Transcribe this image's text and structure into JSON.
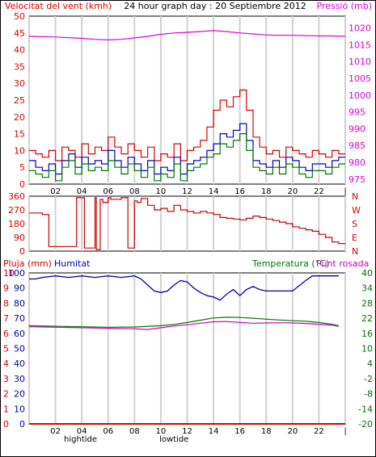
{
  "header": {
    "left_title": "Velocitat del vent (kmh)",
    "center_title": "24 hour graph day : 20 Septiembre 2012",
    "right_title": "Pressió (mb)"
  },
  "colors": {
    "wind": "#dd0000",
    "gust": "#dd0000",
    "avg": "#0000cc",
    "pressure": "#dd00dd",
    "humidity": "#0000aa",
    "temperature": "#007700",
    "dewpoint": "#cc00cc",
    "rain": "#dd0000",
    "dir": "#cc0000",
    "grid": "#d0d0d0"
  },
  "chart_data": [
    {
      "type": "line",
      "name": "wind_pressure",
      "x_ticks": [
        "02",
        "04",
        "06",
        "08",
        "10",
        "12",
        "14",
        "16",
        "18",
        "20",
        "22"
      ],
      "tide_labels": [
        {
          "text": "hightide",
          "x": 3.9
        },
        {
          "text": "lowtide",
          "x": 11.0
        }
      ],
      "y_left": {
        "label": "Velocitat del vent (kmh)",
        "range": [
          0,
          50
        ],
        "ticks": [
          0,
          5,
          10,
          15,
          20,
          25,
          30,
          35,
          40,
          45,
          50
        ]
      },
      "y_right": {
        "label": "Pressió (mb)",
        "range": [
          973.5,
          1023.5
        ],
        "ticks": [
          975,
          980,
          985,
          990,
          995,
          1000,
          1005,
          1010,
          1015,
          1020
        ]
      },
      "series": [
        {
          "key": "gust",
          "x": [
            0,
            0.5,
            1,
            1.5,
            2,
            2.5,
            3,
            3.5,
            4,
            4.5,
            5,
            5.5,
            6,
            6.5,
            7,
            7.5,
            8,
            8.5,
            9,
            9.5,
            10,
            10.5,
            11,
            11.5,
            12,
            12.5,
            13,
            13.5,
            14,
            14.5,
            15,
            15.5,
            16,
            16.5,
            17,
            17.5,
            18,
            18.5,
            19,
            19.5,
            20,
            20.5,
            21,
            21.5,
            22,
            22.5,
            23,
            23.5
          ],
          "values": [
            10,
            9,
            8,
            10,
            7,
            11,
            10,
            8,
            12,
            9,
            11,
            10,
            14,
            11,
            9,
            12,
            10,
            8,
            11,
            7,
            9,
            8,
            12,
            7,
            10,
            11,
            13,
            17,
            22,
            25,
            23,
            26,
            28,
            22,
            14,
            11,
            9,
            10,
            8,
            11,
            10,
            9,
            8,
            10,
            9,
            8,
            10,
            9
          ]
        },
        {
          "key": "avg",
          "x": [
            0,
            0.5,
            1,
            1.5,
            2,
            2.5,
            3,
            3.5,
            4,
            4.5,
            5,
            5.5,
            6,
            6.5,
            7,
            7.5,
            8,
            8.5,
            9,
            9.5,
            10,
            10.5,
            11,
            11.5,
            12,
            12.5,
            13,
            13.5,
            14,
            14.5,
            15,
            15.5,
            16,
            16.5,
            17,
            17.5,
            18,
            18.5,
            19,
            19.5,
            20,
            20.5,
            21,
            21.5,
            22,
            22.5,
            23,
            23.5
          ],
          "values": [
            7,
            5,
            4,
            6,
            3,
            7,
            9,
            5,
            8,
            6,
            7,
            6,
            10,
            7,
            5,
            8,
            6,
            4,
            7,
            3,
            5,
            4,
            8,
            3,
            6,
            7,
            8,
            10,
            12,
            15,
            14,
            16,
            18,
            13,
            7,
            6,
            5,
            7,
            5,
            8,
            7,
            5,
            4,
            6,
            6,
            5,
            7,
            8
          ]
        },
        {
          "key": "wind",
          "x": [
            0,
            0.5,
            1,
            1.5,
            2,
            2.5,
            3,
            3.5,
            4,
            4.5,
            5,
            5.5,
            6,
            6.5,
            7,
            7.5,
            8,
            8.5,
            9,
            9.5,
            10,
            10.5,
            11,
            11.5,
            12,
            12.5,
            13,
            13.5,
            14,
            14.5,
            15,
            15.5,
            16,
            16.5,
            17,
            17.5,
            18,
            18.5,
            19,
            19.5,
            20,
            20.5,
            21,
            21.5,
            22,
            22.5,
            23,
            23.5
          ],
          "values": [
            4,
            3,
            2,
            4,
            1,
            5,
            7,
            3,
            6,
            4,
            5,
            4,
            7,
            5,
            3,
            6,
            4,
            2,
            5,
            1,
            3,
            2,
            6,
            1,
            4,
            5,
            6,
            8,
            9,
            12,
            11,
            13,
            15,
            10,
            5,
            4,
            3,
            5,
            3,
            6,
            5,
            3,
            2,
            4,
            4,
            3,
            5,
            6
          ]
        },
        {
          "key": "pressure",
          "x": [
            0,
            2,
            4,
            5,
            6,
            7,
            8,
            9,
            10,
            11,
            12,
            13,
            14,
            15,
            16,
            17,
            18,
            19,
            20,
            21,
            22,
            23,
            24
          ],
          "values": [
            1017.5,
            1017.3,
            1016.9,
            1016.6,
            1016.4,
            1016.6,
            1017.0,
            1017.5,
            1018.1,
            1018.5,
            1018.7,
            1018.9,
            1019.2,
            1018.9,
            1018.5,
            1018.2,
            1017.9,
            1017.8,
            1017.8,
            1017.7,
            1017.6,
            1017.6,
            1017.5
          ]
        }
      ]
    },
    {
      "type": "line",
      "name": "wind_direction",
      "y_left": {
        "range": [
          0,
          360
        ],
        "ticks": [
          0,
          90,
          180,
          270,
          360
        ]
      },
      "y_right_labels": [
        "N",
        "W",
        "S",
        "E",
        "N"
      ],
      "series": [
        {
          "key": "dir",
          "x": [
            0,
            0.3,
            0.6,
            1,
            1.5,
            2,
            3,
            3.5,
            3.6,
            4.1,
            4.2,
            5,
            5.1,
            5.4,
            5.6,
            6,
            6.2,
            7,
            7.5,
            8,
            8.2,
            8.5,
            9,
            9.5,
            10,
            10.5,
            11,
            11.5,
            12,
            12.5,
            13,
            13.5,
            14,
            14.5,
            15,
            15.5,
            16,
            16.5,
            17,
            17.5,
            18,
            18.5,
            19,
            19.5,
            20,
            20.5,
            21,
            21.5,
            22,
            22.5,
            23,
            23.5
          ],
          "values": [
            250,
            250,
            250,
            240,
            30,
            30,
            30,
            30,
            350,
            350,
            20,
            350,
            10,
            340,
            320,
            350,
            340,
            350,
            20,
            330,
            320,
            345,
            300,
            270,
            280,
            260,
            300,
            270,
            260,
            250,
            260,
            250,
            240,
            220,
            215,
            210,
            205,
            215,
            230,
            220,
            210,
            200,
            190,
            180,
            160,
            150,
            140,
            130,
            110,
            90,
            60,
            50
          ]
        }
      ]
    },
    {
      "type": "line",
      "name": "rain_hum_temp",
      "left_header": [
        "Pluja (mm)",
        "Humitat"
      ],
      "right_header": [
        "Temperatura (°C)",
        "Punt rosada"
      ],
      "y_left_rain": {
        "range": [
          0,
          10
        ],
        "ticks": [
          0,
          1,
          2,
          3,
          4,
          5,
          6,
          7,
          8,
          9,
          10
        ]
      },
      "y_left_hum": {
        "range": [
          0,
          100
        ],
        "ticks": [
          0,
          10,
          20,
          30,
          40,
          50,
          60,
          70,
          80,
          90,
          100
        ]
      },
      "y_right": {
        "range": [
          -20,
          40
        ],
        "ticks": [
          -20,
          -14,
          -8,
          -2,
          4,
          10,
          16,
          22,
          28,
          34,
          40
        ]
      },
      "series": [
        {
          "key": "humidity",
          "x": [
            0,
            0.5,
            1,
            2,
            3,
            4,
            5,
            6,
            7,
            8,
            8.5,
            9,
            9.5,
            10,
            10.5,
            11,
            11.5,
            12,
            12.5,
            13,
            13.5,
            14,
            14.5,
            15,
            15.5,
            16,
            16.5,
            17,
            17.5,
            18,
            19,
            20,
            21,
            21.5,
            22,
            23,
            23.5
          ],
          "values": [
            96,
            96,
            97,
            98,
            97,
            98,
            97,
            98,
            97,
            98,
            96,
            92,
            88,
            87,
            88,
            92,
            95,
            94,
            90,
            87,
            85,
            84,
            82,
            86,
            89,
            85,
            89,
            91,
            89,
            88,
            88,
            88,
            95,
            98,
            98,
            98,
            98
          ]
        },
        {
          "key": "temperature",
          "x": [
            0,
            2,
            4,
            6,
            8,
            10,
            11,
            12,
            13,
            14,
            15,
            16,
            17,
            18,
            19,
            20,
            21,
            22,
            23,
            23.5
          ],
          "values": [
            19,
            18.8,
            18.6,
            18.4,
            18.5,
            19,
            19.5,
            20.3,
            21.2,
            22.1,
            22.4,
            22.3,
            22.0,
            21.6,
            21.3,
            21.0,
            20.8,
            20.3,
            19.6,
            19
          ]
        },
        {
          "key": "dewpoint",
          "x": [
            0,
            2,
            4,
            6,
            8,
            9,
            10,
            11,
            12,
            13,
            14,
            15,
            16,
            17,
            18,
            19,
            20,
            21,
            22,
            23,
            23.5
          ],
          "values": [
            18.6,
            18.4,
            18.2,
            18.0,
            17.8,
            17.5,
            18.2,
            18.9,
            19.4,
            20.0,
            20.6,
            20.7,
            20.3,
            20.0,
            20.1,
            20.2,
            20.1,
            19.9,
            19.6,
            19.2,
            18.8
          ]
        },
        {
          "key": "rain",
          "x": [
            0,
            24
          ],
          "values": [
            0,
            0
          ]
        }
      ]
    }
  ]
}
